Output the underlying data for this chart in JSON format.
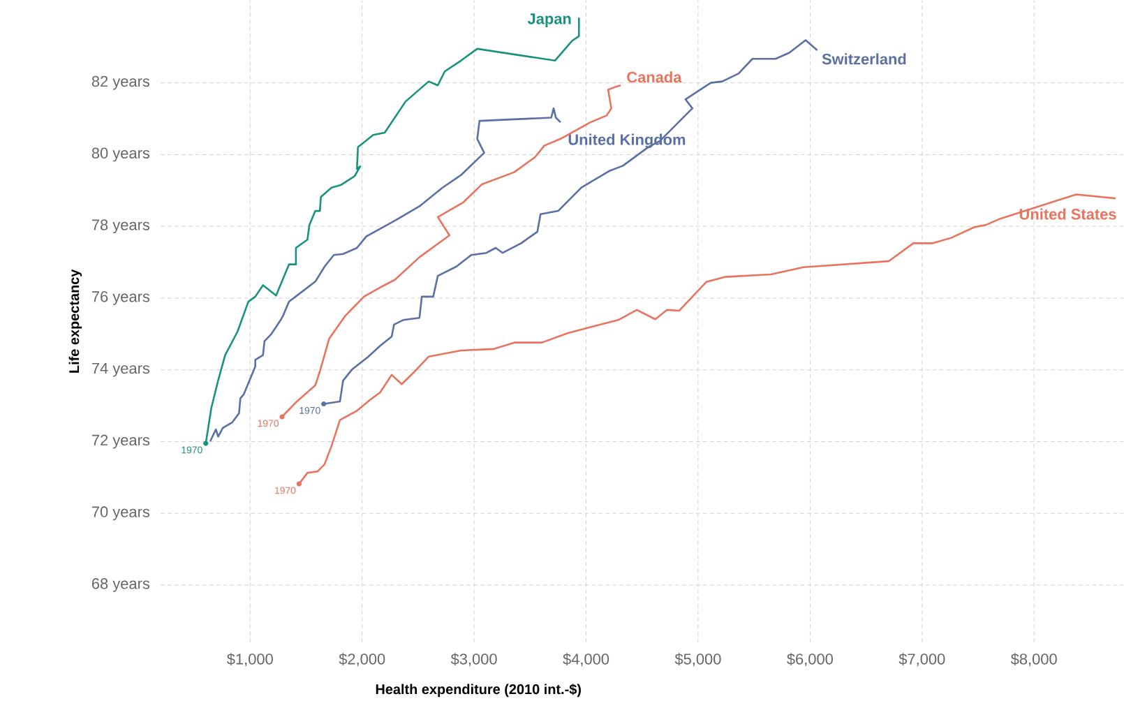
{
  "chart_data": {
    "type": "line",
    "xlabel": "Health expenditure (2010 int.-$)",
    "ylabel": "Life expectancy",
    "xlim": [
      200,
      8800
    ],
    "ylim": [
      66.4,
      84.3
    ],
    "xticks": [
      {
        "value": 1000,
        "label": "$1,000"
      },
      {
        "value": 2000,
        "label": "$2,000"
      },
      {
        "value": 3000,
        "label": "$3,000"
      },
      {
        "value": 4000,
        "label": "$4,000"
      },
      {
        "value": 5000,
        "label": "$5,000"
      },
      {
        "value": 6000,
        "label": "$6,000"
      },
      {
        "value": 7000,
        "label": "$7,000"
      },
      {
        "value": 8000,
        "label": "$8,000"
      }
    ],
    "yticks": [
      {
        "value": 68,
        "label": "68 years"
      },
      {
        "value": 70,
        "label": "70 years"
      },
      {
        "value": 72,
        "label": "72 years"
      },
      {
        "value": 74,
        "label": "74 years"
      },
      {
        "value": 76,
        "label": "76 years"
      },
      {
        "value": 78,
        "label": "78 years"
      },
      {
        "value": 80,
        "label": "80 years"
      },
      {
        "value": 82,
        "label": "82 years"
      }
    ],
    "grid": true,
    "series": [
      {
        "name": "Japan",
        "color": "#18927e",
        "x": [
          604,
          653,
          715,
          777,
          888,
          984,
          1046,
          1115,
          1232,
          1347,
          1409,
          1409,
          1512,
          1529,
          1582,
          1623,
          1632,
          1727,
          1809,
          1933,
          1983,
          1954,
          1963,
          2099,
          2202,
          2388,
          2595,
          2676,
          2738,
          2883,
          3028,
          3722,
          3874,
          3936,
          3936
        ],
        "values": [
          71.95,
          72.93,
          73.71,
          74.41,
          75.07,
          75.9,
          76.04,
          76.36,
          76.07,
          76.94,
          76.94,
          77.4,
          77.63,
          78.04,
          78.43,
          78.43,
          78.82,
          79.08,
          79.15,
          79.4,
          79.67,
          79.6,
          80.21,
          80.55,
          80.61,
          81.48,
          82.04,
          81.93,
          82.32,
          82.62,
          82.95,
          82.62,
          83.17,
          83.3,
          83.82
        ]
      },
      {
        "name": "United Kingdom",
        "color": "#5a6fa5",
        "x": [
          644,
          694,
          715,
          756,
          839,
          901,
          913,
          942,
          1046,
          1046,
          1115,
          1128,
          1190,
          1273,
          1294,
          1347,
          1418,
          1582,
          1665,
          1747,
          1830,
          1954,
          2037,
          2305,
          2512,
          2718,
          2883,
          3090,
          3028,
          3048,
          3689,
          3710,
          3730,
          3772
        ],
        "values": [
          72.01,
          72.34,
          72.14,
          72.38,
          72.53,
          72.79,
          73.21,
          73.31,
          74.09,
          74.28,
          74.41,
          74.8,
          75.0,
          75.39,
          75.51,
          75.9,
          76.07,
          76.46,
          76.88,
          77.2,
          77.23,
          77.4,
          77.72,
          78.18,
          78.56,
          79.08,
          79.43,
          80.05,
          80.44,
          80.94,
          81.03,
          81.29,
          81.03,
          80.9
        ]
      },
      {
        "name": "Canada",
        "color": "#e8735e",
        "x": [
          1285,
          1418,
          1582,
          1623,
          1706,
          1851,
          2016,
          2181,
          2292,
          2512,
          2780,
          2676,
          2904,
          3069,
          3358,
          3544,
          3627,
          3772,
          4039,
          4184,
          4225,
          4197,
          4246,
          4308
        ],
        "values": [
          72.69,
          73.12,
          73.57,
          73.96,
          74.87,
          75.51,
          76.04,
          76.33,
          76.51,
          77.14,
          77.75,
          78.26,
          78.67,
          79.17,
          79.51,
          79.93,
          80.25,
          80.44,
          80.9,
          81.09,
          81.29,
          81.81,
          81.87,
          81.93
        ]
      },
      {
        "name": "Switzerland",
        "color": "#5a6fa5",
        "x": [
          1657,
          1802,
          1830,
          1913,
          2049,
          2161,
          2264,
          2285,
          2367,
          2512,
          2533,
          2635,
          2676,
          2842,
          2974,
          3110,
          3193,
          3255,
          3420,
          3565,
          3593,
          3751,
          3958,
          4205,
          4329,
          4556,
          4659,
          4949,
          4887,
          5113,
          5216,
          5361,
          5485,
          5692,
          5815,
          5960,
          6064
        ],
        "values": [
          73.05,
          73.12,
          73.7,
          74.02,
          74.35,
          74.67,
          74.93,
          75.26,
          75.39,
          75.45,
          76.04,
          76.04,
          76.62,
          76.88,
          77.2,
          77.26,
          77.4,
          77.26,
          77.53,
          77.85,
          78.34,
          78.43,
          79.08,
          79.54,
          79.69,
          80.21,
          80.38,
          81.29,
          81.54,
          82.0,
          82.04,
          82.26,
          82.67,
          82.67,
          82.84,
          83.19,
          82.91
        ]
      },
      {
        "name": "United States",
        "color": "#e8735e",
        "x": [
          1437,
          1512,
          1603,
          1665,
          1727,
          1802,
          1954,
          2078,
          2161,
          2264,
          2354,
          2471,
          2595,
          2883,
          3172,
          3358,
          3606,
          3834,
          4039,
          4287,
          4453,
          4618,
          4721,
          4832,
          5073,
          5238,
          5650,
          5940,
          6703,
          6922,
          7096,
          7261,
          7468,
          7571,
          7695,
          8376,
          8728
        ],
        "values": [
          70.82,
          71.13,
          71.17,
          71.37,
          71.88,
          72.6,
          72.86,
          73.18,
          73.37,
          73.86,
          73.6,
          73.96,
          74.37,
          74.54,
          74.58,
          74.76,
          74.76,
          75.02,
          75.19,
          75.39,
          75.67,
          75.41,
          75.67,
          75.65,
          76.45,
          76.59,
          76.66,
          76.86,
          77.03,
          77.53,
          77.53,
          77.68,
          77.98,
          78.04,
          78.21,
          78.89,
          78.78
        ]
      }
    ],
    "annotations": [
      {
        "text": "1970",
        "x": 604,
        "y": 71.95
      },
      {
        "text": "1970",
        "x": 1285,
        "y": 72.69
      },
      {
        "text": "1970",
        "x": 1657,
        "y": 73.05
      },
      {
        "text": "1970",
        "x": 1437,
        "y": 70.82
      }
    ]
  }
}
